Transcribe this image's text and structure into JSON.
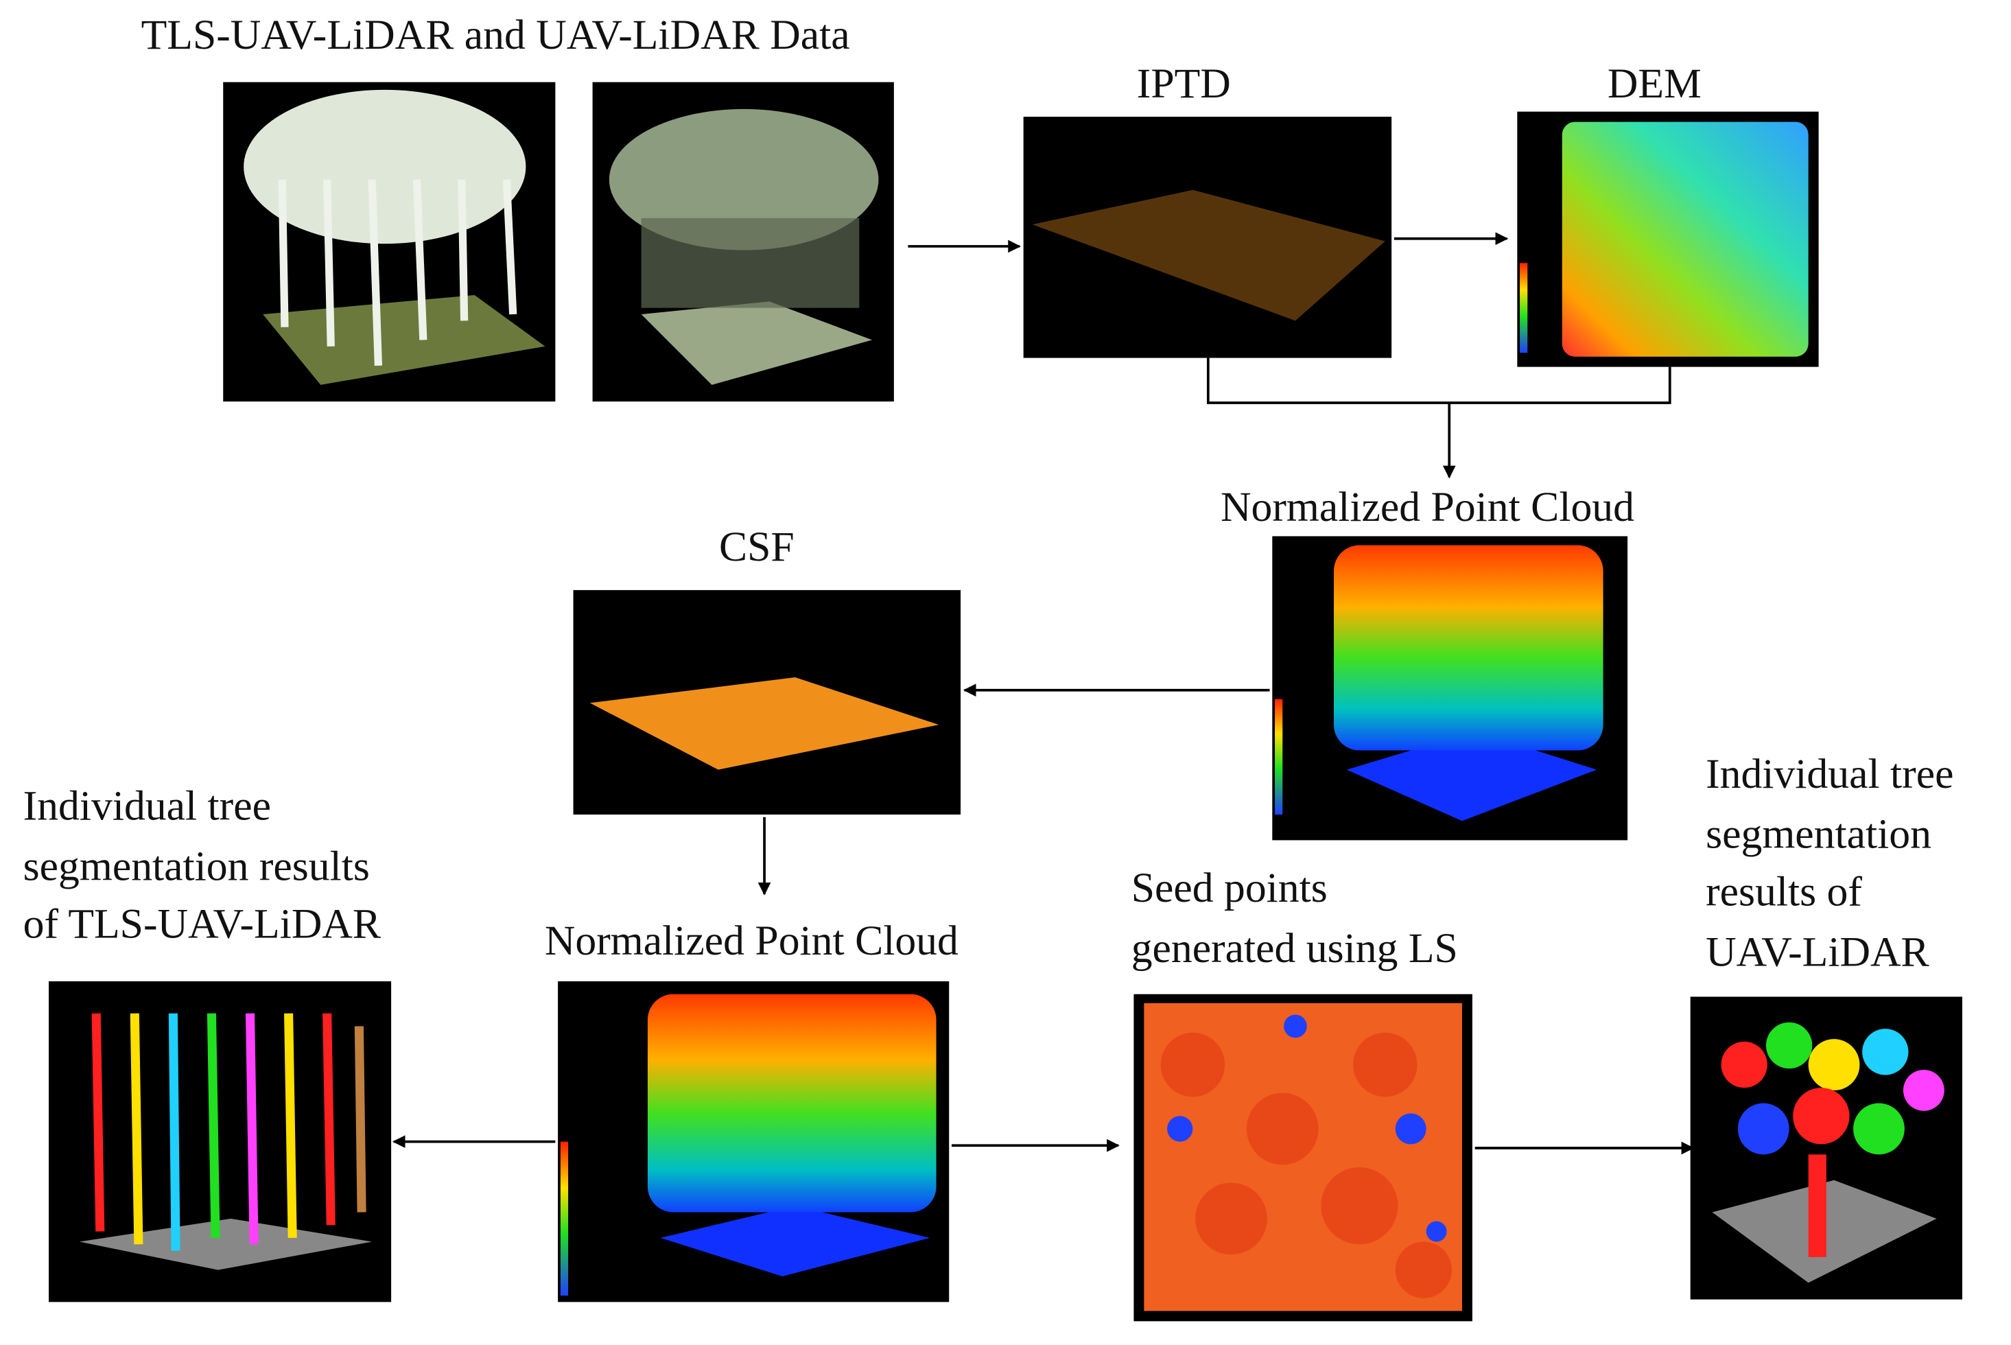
{
  "title": "TLS-UAV-LiDAR   and UAV-LiDAR  Data",
  "nodes": [
    {
      "label": [
        "IPTD"
      ]
    },
    {
      "label": [
        "DEM"
      ]
    },
    {
      "label": [
        "Normalized Point Cloud"
      ]
    },
    {
      "label": [
        "CSF"
      ]
    },
    {
      "label": [
        "Normalized Point Cloud"
      ]
    },
    {
      "label": [
        "Individual tree",
        "segmentation  results",
        "of TLS-UAV-LiDAR"
      ]
    },
    {
      "label": [
        "Seed points",
        "generated using LS"
      ]
    },
    {
      "label": [
        "Individual tree",
        "segmentation",
        "results of",
        "UAV-LiDAR"
      ]
    }
  ]
}
